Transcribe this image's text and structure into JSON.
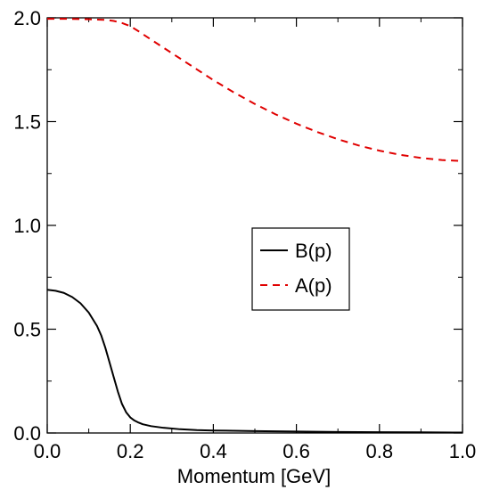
{
  "chart_data": {
    "type": "line",
    "title": "",
    "xlabel": "Momentum [GeV]",
    "ylabel": "",
    "xlim": [
      0.0,
      1.0
    ],
    "ylim": [
      0.0,
      2.0
    ],
    "x_ticks": [
      "0.0",
      "0.2",
      "0.4",
      "0.6",
      "0.8",
      "1.0"
    ],
    "y_ticks": [
      "0.0",
      "0.5",
      "1.0",
      "1.5",
      "2.0"
    ],
    "legend_position": "center-right",
    "grid": false,
    "series": [
      {
        "name": "B(p)",
        "color": "#000000",
        "dash": "solid",
        "x": [
          0.0,
          0.02,
          0.04,
          0.06,
          0.08,
          0.1,
          0.12,
          0.13,
          0.14,
          0.15,
          0.16,
          0.17,
          0.18,
          0.19,
          0.2,
          0.21,
          0.22,
          0.23,
          0.25,
          0.28,
          0.32,
          0.36,
          0.4,
          0.5,
          0.6,
          0.7,
          0.8,
          0.9,
          1.0
        ],
        "y": [
          0.69,
          0.685,
          0.675,
          0.655,
          0.625,
          0.58,
          0.515,
          0.47,
          0.41,
          0.34,
          0.27,
          0.2,
          0.14,
          0.1,
          0.075,
          0.06,
          0.05,
          0.042,
          0.033,
          0.025,
          0.018,
          0.014,
          0.012,
          0.009,
          0.007,
          0.005,
          0.004,
          0.003,
          0.002
        ]
      },
      {
        "name": "A(p)",
        "color": "#e00000",
        "dash": "dashed",
        "x": [
          0.0,
          0.05,
          0.1,
          0.14,
          0.16,
          0.18,
          0.2,
          0.22,
          0.25,
          0.3,
          0.35,
          0.4,
          0.45,
          0.5,
          0.55,
          0.6,
          0.65,
          0.7,
          0.75,
          0.8,
          0.85,
          0.9,
          0.95,
          1.0
        ],
        "y": [
          1.995,
          1.995,
          1.993,
          1.99,
          1.985,
          1.975,
          1.96,
          1.935,
          1.895,
          1.83,
          1.765,
          1.7,
          1.64,
          1.585,
          1.535,
          1.49,
          1.45,
          1.415,
          1.385,
          1.36,
          1.34,
          1.325,
          1.315,
          1.31
        ]
      }
    ]
  }
}
